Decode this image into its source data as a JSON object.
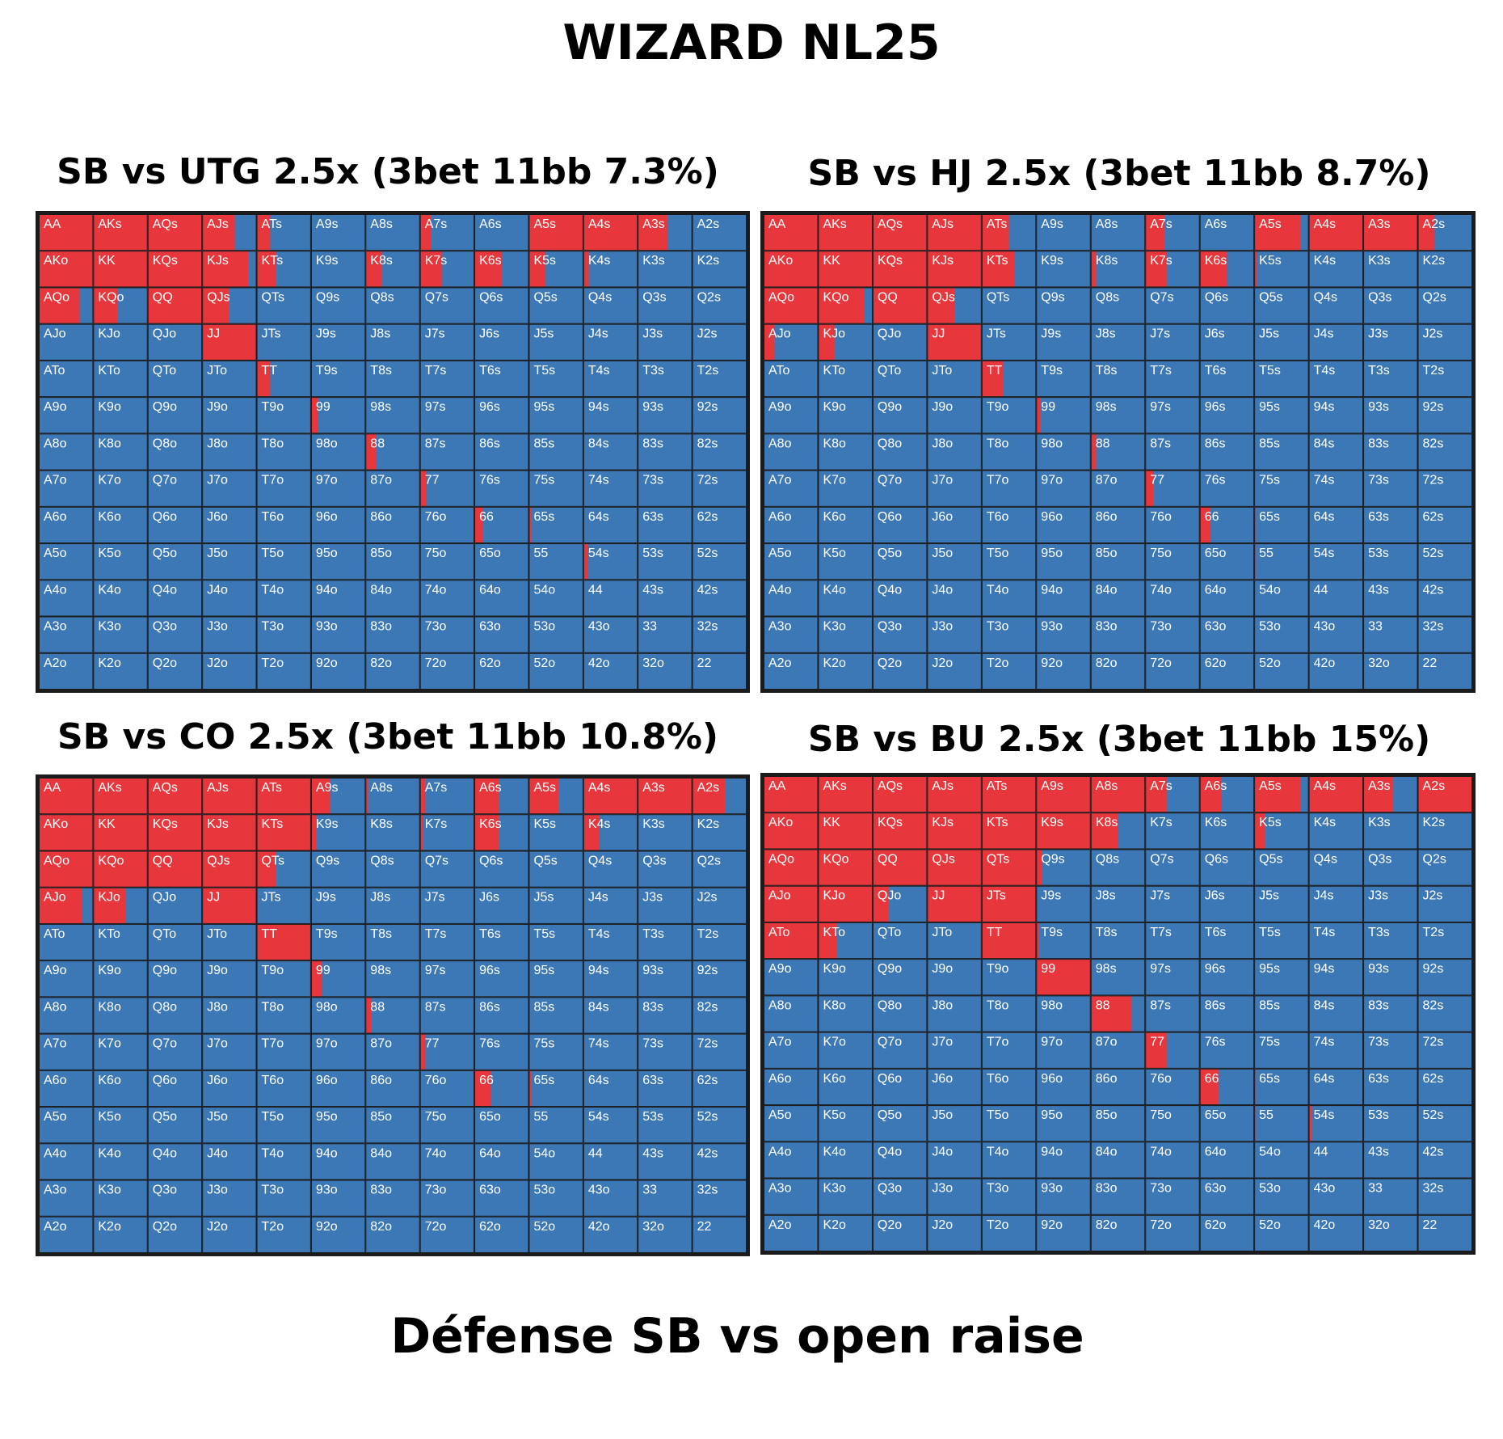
{
  "page": {
    "title": "WIZARD NL25",
    "footer": "Défense SB vs open raise",
    "colors": {
      "raise": "#e8373c",
      "other": "#3d78b6",
      "border": "#1b1b1b"
    }
  },
  "chart_data": [
    {
      "type": "heatmap",
      "title": "SB vs UTG 2.5x (3bet 11bb 7.3%)",
      "ranks": [
        "A",
        "K",
        "Q",
        "J",
        "T",
        "9",
        "8",
        "7",
        "6",
        "5",
        "4",
        "3",
        "2"
      ],
      "value_description": "fraction of hand played as 3bet (red)",
      "raise_freq": [
        [
          1,
          1,
          1,
          0.6,
          0.25,
          0,
          0,
          0.2,
          0,
          1,
          1,
          0.55,
          0
        ],
        [
          1,
          1,
          1,
          0.85,
          0.35,
          0,
          0.3,
          0.4,
          0.5,
          0.3,
          0.1,
          0,
          0
        ],
        [
          0.75,
          0.45,
          1,
          0.5,
          0,
          0,
          0,
          0,
          0,
          0,
          0,
          0,
          0
        ],
        [
          0,
          0,
          0,
          1,
          0,
          0,
          0,
          0,
          0,
          0,
          0,
          0,
          0
        ],
        [
          0,
          0,
          0,
          0,
          0.25,
          0,
          0,
          0,
          0,
          0,
          0,
          0,
          0
        ],
        [
          0,
          0,
          0,
          0,
          0,
          0.12,
          0,
          0,
          0,
          0,
          0,
          0,
          0
        ],
        [
          0,
          0,
          0,
          0,
          0,
          0,
          0.2,
          0,
          0,
          0,
          0,
          0,
          0
        ],
        [
          0,
          0,
          0,
          0,
          0,
          0,
          0,
          0.12,
          0,
          0,
          0,
          0,
          0
        ],
        [
          0,
          0,
          0,
          0,
          0,
          0,
          0,
          0,
          0.15,
          0.05,
          0,
          0,
          0
        ],
        [
          0,
          0,
          0,
          0,
          0,
          0,
          0,
          0,
          0,
          0,
          0.08,
          0,
          0
        ],
        [
          0,
          0,
          0,
          0,
          0,
          0,
          0,
          0,
          0,
          0,
          0,
          0,
          0
        ],
        [
          0,
          0,
          0,
          0,
          0,
          0,
          0,
          0,
          0,
          0,
          0,
          0,
          0
        ],
        [
          0,
          0,
          0,
          0,
          0,
          0,
          0,
          0,
          0,
          0,
          0,
          0,
          0
        ]
      ]
    },
    {
      "type": "heatmap",
      "title": "SB vs HJ 2.5x (3bet 11bb 8.7%)",
      "ranks": [
        "A",
        "K",
        "Q",
        "J",
        "T",
        "9",
        "8",
        "7",
        "6",
        "5",
        "4",
        "3",
        "2"
      ],
      "value_description": "fraction of hand played as 3bet (red)",
      "raise_freq": [
        [
          1,
          1,
          1,
          1,
          0.5,
          0,
          0,
          0.35,
          0,
          0.85,
          1,
          1,
          0.3
        ],
        [
          1,
          1,
          1,
          1,
          0.6,
          0,
          0.1,
          0.4,
          0.5,
          0.05,
          0,
          0,
          0
        ],
        [
          1,
          0.85,
          1,
          0.5,
          0,
          0,
          0,
          0,
          0,
          0,
          0,
          0,
          0
        ],
        [
          0.2,
          0.3,
          0,
          1,
          0,
          0,
          0,
          0,
          0,
          0,
          0,
          0,
          0
        ],
        [
          0,
          0,
          0,
          0,
          0.4,
          0,
          0,
          0,
          0,
          0,
          0,
          0,
          0
        ],
        [
          0,
          0,
          0,
          0,
          0,
          0.08,
          0,
          0,
          0,
          0,
          0,
          0,
          0
        ],
        [
          0,
          0,
          0,
          0,
          0,
          0,
          0.1,
          0,
          0,
          0,
          0,
          0,
          0
        ],
        [
          0,
          0,
          0,
          0,
          0,
          0,
          0,
          0.15,
          0,
          0,
          0,
          0,
          0
        ],
        [
          0,
          0,
          0,
          0,
          0,
          0,
          0,
          0,
          0.2,
          0.03,
          0,
          0,
          0
        ],
        [
          0,
          0,
          0,
          0,
          0,
          0,
          0,
          0,
          0,
          0.03,
          0,
          0,
          0
        ],
        [
          0,
          0,
          0,
          0,
          0,
          0,
          0,
          0,
          0,
          0,
          0,
          0,
          0
        ],
        [
          0,
          0,
          0,
          0,
          0,
          0,
          0,
          0,
          0,
          0,
          0,
          0,
          0
        ],
        [
          0,
          0,
          0,
          0,
          0,
          0,
          0,
          0,
          0,
          0,
          0,
          0,
          0
        ]
      ]
    },
    {
      "type": "heatmap",
      "title": "SB vs CO 2.5x (3bet 11bb 10.8%)",
      "ranks": [
        "A",
        "K",
        "Q",
        "J",
        "T",
        "9",
        "8",
        "7",
        "6",
        "5",
        "4",
        "3",
        "2"
      ],
      "value_description": "fraction of hand played as 3bet (red)",
      "raise_freq": [
        [
          1,
          1,
          1,
          1,
          1,
          0.35,
          0.05,
          0.1,
          0.45,
          0.55,
          1,
          1,
          0.6
        ],
        [
          1,
          1,
          1,
          1,
          1,
          0.1,
          0,
          0.05,
          0.45,
          0,
          0.3,
          0,
          0
        ],
        [
          1,
          1,
          1,
          1,
          0.35,
          0,
          0,
          0,
          0,
          0,
          0,
          0,
          0
        ],
        [
          0.8,
          0.6,
          0,
          1,
          0,
          0,
          0,
          0,
          0,
          0,
          0,
          0,
          0
        ],
        [
          0,
          0,
          0,
          0,
          1,
          0,
          0,
          0,
          0,
          0,
          0,
          0,
          0
        ],
        [
          0,
          0,
          0,
          0,
          0,
          0.2,
          0,
          0,
          0,
          0,
          0,
          0,
          0
        ],
        [
          0,
          0,
          0,
          0,
          0,
          0,
          0.1,
          0,
          0,
          0,
          0,
          0,
          0
        ],
        [
          0,
          0,
          0,
          0,
          0,
          0,
          0,
          0.1,
          0,
          0,
          0,
          0,
          0
        ],
        [
          0,
          0,
          0,
          0,
          0,
          0,
          0,
          0,
          0.3,
          0.04,
          0,
          0,
          0
        ],
        [
          0,
          0,
          0,
          0,
          0,
          0,
          0,
          0,
          0,
          0,
          0,
          0,
          0
        ],
        [
          0,
          0,
          0,
          0,
          0,
          0,
          0,
          0,
          0,
          0,
          0,
          0,
          0
        ],
        [
          0,
          0,
          0,
          0,
          0,
          0,
          0,
          0,
          0,
          0,
          0,
          0,
          0
        ],
        [
          0,
          0,
          0,
          0,
          0,
          0,
          0,
          0,
          0,
          0,
          0,
          0,
          0
        ]
      ]
    },
    {
      "type": "heatmap",
      "title": "SB vs BU 2.5x (3bet 11bb 15%)",
      "ranks": [
        "A",
        "K",
        "Q",
        "J",
        "T",
        "9",
        "8",
        "7",
        "6",
        "5",
        "4",
        "3",
        "2"
      ],
      "value_description": "fraction of hand played as 3bet (red)",
      "raise_freq": [
        [
          1,
          1,
          1,
          1,
          1,
          1,
          1,
          0.4,
          0.4,
          0.85,
          1,
          0.55,
          1
        ],
        [
          1,
          1,
          1,
          1,
          1,
          1,
          0.5,
          0,
          0,
          0.2,
          0,
          0,
          0
        ],
        [
          1,
          1,
          1,
          1,
          1,
          0.1,
          0,
          0,
          0,
          0,
          0,
          0,
          0
        ],
        [
          1,
          1,
          0.3,
          1,
          1,
          0,
          0,
          0,
          0,
          0,
          0,
          0,
          0
        ],
        [
          1,
          0.35,
          0,
          0,
          1,
          0.05,
          0,
          0,
          0,
          0,
          0,
          0,
          0
        ],
        [
          0,
          0,
          0,
          0,
          0,
          1,
          0,
          0,
          0,
          0,
          0,
          0,
          0
        ],
        [
          0,
          0,
          0,
          0,
          0,
          0,
          0.75,
          0,
          0,
          0,
          0,
          0,
          0
        ],
        [
          0,
          0,
          0,
          0,
          0,
          0,
          0,
          0.4,
          0,
          0,
          0,
          0,
          0
        ],
        [
          0,
          0,
          0,
          0,
          0,
          0,
          0,
          0,
          0.35,
          0.03,
          0,
          0,
          0
        ],
        [
          0,
          0,
          0,
          0,
          0,
          0,
          0,
          0,
          0,
          0.03,
          0.05,
          0,
          0
        ],
        [
          0,
          0,
          0,
          0,
          0,
          0,
          0,
          0,
          0,
          0,
          0,
          0,
          0
        ],
        [
          0,
          0,
          0,
          0,
          0,
          0,
          0,
          0,
          0,
          0,
          0,
          0,
          0
        ],
        [
          0,
          0,
          0,
          0,
          0,
          0,
          0,
          0,
          0,
          0,
          0,
          0,
          0
        ]
      ]
    }
  ]
}
